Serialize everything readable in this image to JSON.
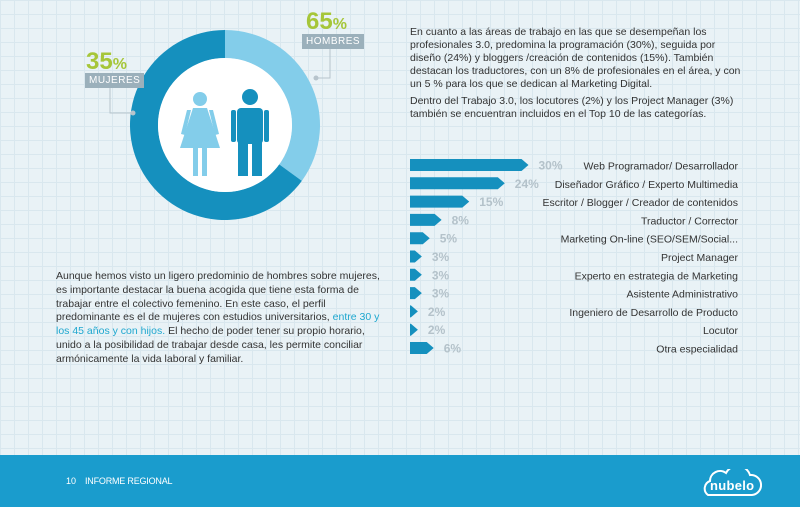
{
  "donut": {
    "women": {
      "percent": "35",
      "pct_sign": "%",
      "label": "MUJERES",
      "color": "#83cdea"
    },
    "men": {
      "percent": "65",
      "pct_sign": "%",
      "label": "HOMBRES",
      "color": "#1590be"
    }
  },
  "intro": {
    "p1": "En cuanto a las áreas de trabajo en las que se desempeñan los profesionales 3.0, predomina la programación (30%), seguida por diseño (24%) y bloggers /creación de contenidos (15%). También destacan los traductores, con un 8% de profesionales en el área, y con un 5 % para los que se dedican al Marketing Digital.",
    "p2": "Dentro del Trabajo 3.0, los locutores (2%) y los Project Manager (3%) también se encuentran incluidos en el Top 10 de las categorías."
  },
  "body": {
    "before": "Aunque hemos visto un ligero predominio de hombres sobre mujeres, es importante destacar la buena acogida que tiene esta forma de trabajar entre el colectivo femenino. En este caso, el perfil predominante es el de mujeres con estudios universitarios, ",
    "highlight": "entre 30 y los 45 años y con hijos.",
    "after": " El hecho de poder tener su propio horario, unido a la posibilidad de trabajar desde casa, les permite conciliar armónicamente la vida laboral y familiar."
  },
  "chart_data": [
    {
      "type": "pie",
      "categories": [
        "MUJERES",
        "HOMBRES"
      ],
      "values": [
        35,
        65
      ],
      "colors": [
        "#83cdea",
        "#1590be"
      ]
    },
    {
      "type": "bar",
      "orientation": "horizontal",
      "categories": [
        "Web Programador/ Desarrollador",
        "Diseñador Gráfico / Experto Multimedia",
        "Escritor / Blogger / Creador de contenidos",
        "Traductor / Corrector",
        "Marketing On-line (SEO/SEM/Social...",
        "Project Manager",
        "Experto en estrategia de Marketing",
        "Asistente Administrativo",
        "Ingeniero de Desarrollo de Producto",
        "Locutor",
        "Otra especialidad"
      ],
      "values": [
        30,
        24,
        15,
        8,
        5,
        3,
        3,
        3,
        2,
        2,
        6
      ],
      "value_labels": [
        "30%",
        "24%",
        "15%",
        "8%",
        "5%",
        "3%",
        "3%",
        "3%",
        "2%",
        "2%",
        "6%"
      ],
      "bar_color": "#1590be"
    }
  ],
  "footer": {
    "page_number": "10",
    "title": "INFORME REGIONAL",
    "logo_text": "nubelo",
    "color": "#1a9ccd"
  }
}
